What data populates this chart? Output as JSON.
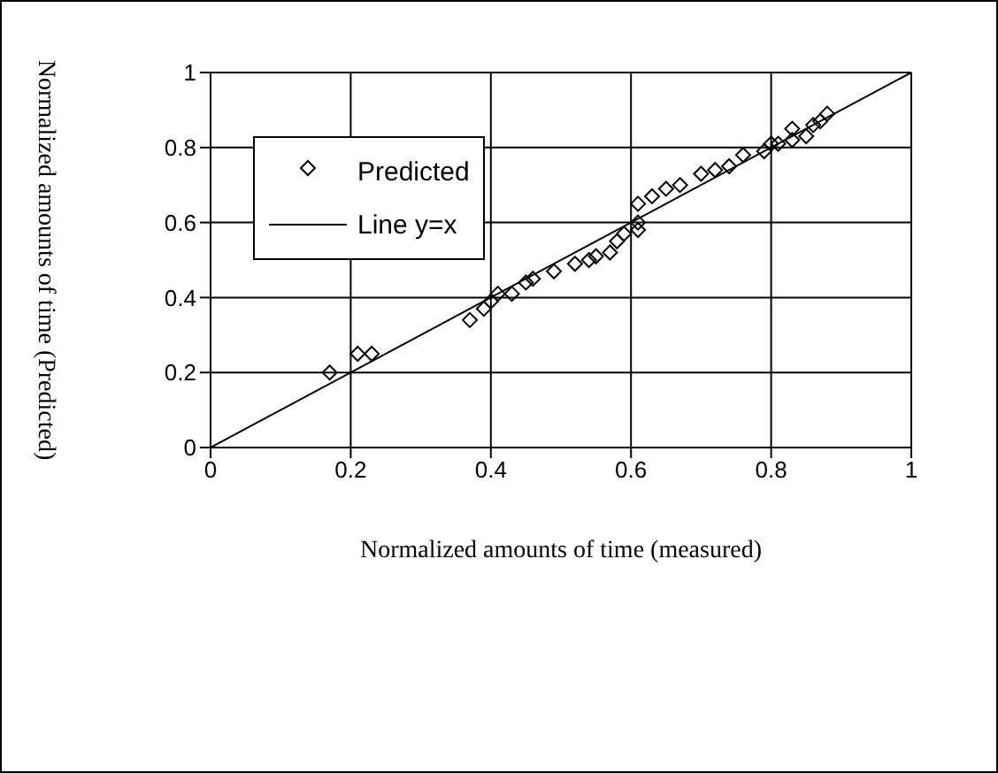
{
  "chart_data": {
    "type": "scatter",
    "xlabel": "Normalized amounts of time (measured)",
    "ylabel": "Normalized amounts of time (Predicted)",
    "xlim": [
      0,
      1
    ],
    "ylim": [
      0,
      1
    ],
    "xticks": [
      0,
      0.2,
      0.4,
      0.6,
      0.8,
      1
    ],
    "yticks": [
      0,
      0.2,
      0.4,
      0.6,
      0.8,
      1
    ],
    "grid": true,
    "legend": "top left",
    "series": [
      {
        "name": "Predicted",
        "marker": "diamond",
        "color": "#000000",
        "x": [
          0.17,
          0.21,
          0.23,
          0.37,
          0.39,
          0.4,
          0.41,
          0.43,
          0.45,
          0.46,
          0.49,
          0.52,
          0.54,
          0.55,
          0.57,
          0.58,
          0.59,
          0.61,
          0.61,
          0.61,
          0.63,
          0.65,
          0.67,
          0.7,
          0.72,
          0.74,
          0.76,
          0.79,
          0.8,
          0.81,
          0.83,
          0.83,
          0.85,
          0.86,
          0.87,
          0.88
        ],
        "values": [
          0.2,
          0.25,
          0.25,
          0.34,
          0.37,
          0.39,
          0.41,
          0.41,
          0.44,
          0.45,
          0.47,
          0.49,
          0.5,
          0.51,
          0.52,
          0.55,
          0.57,
          0.58,
          0.6,
          0.65,
          0.67,
          0.69,
          0.7,
          0.73,
          0.74,
          0.75,
          0.78,
          0.79,
          0.81,
          0.81,
          0.82,
          0.85,
          0.83,
          0.86,
          0.87,
          0.89
        ]
      },
      {
        "name": "Line y=x",
        "type": "line",
        "marker": "none",
        "line_style": "solid",
        "color": "#000000",
        "x": [
          0,
          1
        ],
        "values": [
          0,
          1
        ]
      }
    ]
  }
}
